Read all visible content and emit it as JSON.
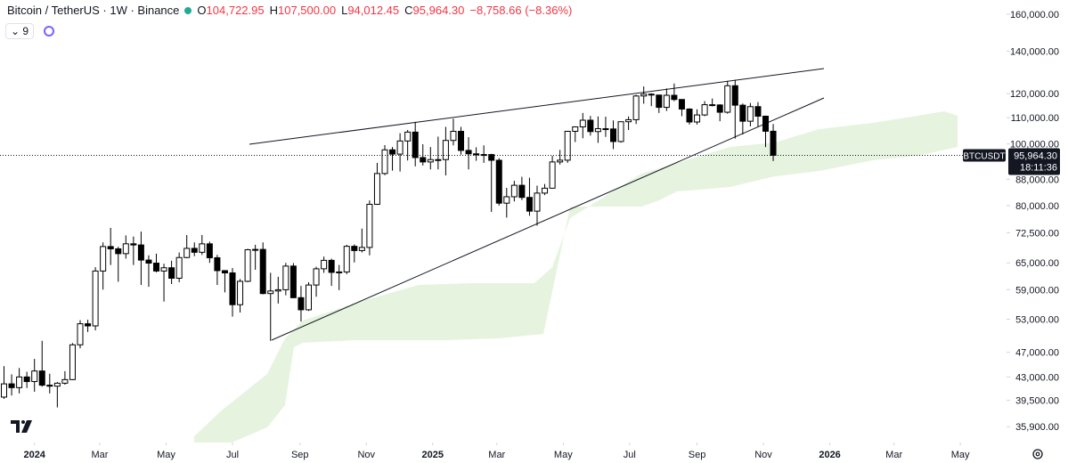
{
  "header": {
    "symbol": "Bitcoin / TetherUS · 1W · Binance",
    "ohlc": [
      {
        "key": "O",
        "value": "104,722.95"
      },
      {
        "key": "H",
        "value": "107,500.00"
      },
      {
        "key": "L",
        "value": "94,012.45"
      },
      {
        "key": "C",
        "value": "95,964.30"
      }
    ],
    "change": "−8,758.66 (−8.36%)",
    "indicators_count": "9"
  },
  "chart_data": {
    "type": "candlestick",
    "log_scale": true,
    "grid": false,
    "up_color": "#ffffff",
    "down_color": "#000000",
    "wick_color": "#000000",
    "categories": [
      null,
      null,
      null,
      null,
      null,
      null,
      null,
      null,
      null,
      null,
      null,
      null,
      null,
      null,
      null,
      null,
      null,
      null,
      null,
      null,
      null,
      null,
      null,
      null,
      null,
      null,
      null,
      null,
      null,
      null,
      null,
      null,
      null,
      null,
      null,
      null,
      null,
      null,
      null,
      null,
      null,
      null,
      null,
      null,
      null,
      null,
      null,
      null,
      null,
      null,
      null,
      null,
      null,
      null,
      null,
      null,
      null,
      null,
      null,
      null,
      null,
      null,
      null,
      null,
      null,
      null,
      null,
      null,
      null,
      null,
      null,
      null,
      null,
      null,
      null,
      null,
      null,
      null,
      null,
      null,
      null,
      null,
      null,
      null,
      null,
      null,
      null,
      null,
      null,
      null,
      null,
      null,
      null,
      null,
      null,
      null,
      null,
      null,
      null,
      null,
      null,
      null
    ],
    "open": [
      39970,
      41930,
      41360,
      42990,
      42280,
      43930,
      41730,
      41580,
      42030,
      42580,
      48300,
      52130,
      51730,
      63110,
      68960,
      68390,
      67210,
      69650,
      69360,
      65660,
      64940,
      63110,
      63860,
      61480,
      66270,
      68510,
      67540,
      69640,
      66220,
      63200,
      62680,
      55860,
      60800,
      68170,
      68250,
      58160,
      58700,
      58970,
      64250,
      57300,
      54840,
      59990,
      63620,
      65600,
      62800,
      62900,
      69020,
      67970,
      68740,
      80370,
      89850,
      97900,
      96400,
      101100,
      104400,
      95200,
      93700,
      94500,
      94500,
      101300,
      104700,
      97700,
      96500,
      96100,
      96250,
      94270,
      80700,
      82600,
      86100,
      82400,
      78400,
      83700,
      85200,
      93700,
      94300,
      104700,
      106400,
      109000,
      104600,
      105700,
      105600,
      100900,
      108400,
      109200,
      119000,
      119800,
      119400,
      114200,
      119300,
      117500,
      113500,
      108300,
      111100,
      115300,
      115200,
      112200,
      123500,
      115100,
      108600,
      114500,
      110600,
      104722.95
    ],
    "high": [
      44700,
      43400,
      44400,
      43800,
      45900,
      49000,
      43500,
      42200,
      43900,
      48600,
      52800,
      52900,
      64000,
      70000,
      73800,
      68900,
      71800,
      71500,
      72800,
      66800,
      67200,
      64800,
      65500,
      67500,
      71900,
      70000,
      71900,
      70200,
      66900,
      63300,
      63800,
      61300,
      68400,
      69400,
      70000,
      62700,
      61800,
      65000,
      64950,
      59800,
      60600,
      64100,
      66500,
      66000,
      64500,
      69400,
      69500,
      73600,
      81500,
      93400,
      99600,
      98900,
      104000,
      105200,
      108350,
      99900,
      98900,
      102700,
      106400,
      109600,
      106400,
      102500,
      98800,
      99500,
      96500,
      95000,
      85300,
      87500,
      88800,
      88500,
      86000,
      86500,
      95800,
      97900,
      104900,
      106600,
      111900,
      110700,
      110500,
      110400,
      108900,
      108500,
      110500,
      119500,
      123200,
      120200,
      119500,
      122300,
      124500,
      117600,
      113800,
      113400,
      116800,
      117900,
      115500,
      125700,
      126200,
      115800,
      116000,
      116400,
      110800,
      107500
    ],
    "low": [
      39700,
      40200,
      40500,
      41300,
      40750,
      41500,
      40500,
      38500,
      41800,
      42500,
      47700,
      50600,
      50900,
      59000,
      64500,
      60700,
      66000,
      64500,
      60000,
      59600,
      62800,
      56500,
      60200,
      60600,
      66100,
      66600,
      66900,
      65000,
      60000,
      58400,
      53500,
      54300,
      60600,
      63400,
      58000,
      49000,
      56100,
      57800,
      57200,
      52550,
      54600,
      57500,
      62700,
      59800,
      58900,
      62400,
      65100,
      67500,
      66800,
      80200,
      89300,
      90800,
      90500,
      94200,
      92200,
      92500,
      91200,
      91200,
      89250,
      99500,
      96200,
      91200,
      94100,
      93400,
      78200,
      80000,
      76600,
      81200,
      81600,
      77100,
      74400,
      83100,
      85100,
      92800,
      93400,
      100700,
      102100,
      103100,
      100400,
      102600,
      98200,
      100500,
      105200,
      107500,
      115700,
      114700,
      111900,
      112700,
      116800,
      110600,
      107300,
      107300,
      110600,
      114600,
      108600,
      111600,
      102000,
      103500,
      106600,
      106300,
      98900,
      94012.45
    ],
    "close": [
      41930,
      41360,
      42990,
      42280,
      43930,
      41730,
      41580,
      42030,
      42580,
      48300,
      52130,
      51730,
      63110,
      68960,
      68390,
      67210,
      69650,
      69360,
      65660,
      64940,
      63110,
      63860,
      61480,
      66270,
      68510,
      67540,
      69640,
      66220,
      63200,
      62680,
      55860,
      60800,
      68170,
      68250,
      58160,
      58700,
      58970,
      64250,
      57300,
      54840,
      59990,
      63620,
      65600,
      62800,
      62900,
      69020,
      67970,
      68740,
      80370,
      89850,
      97900,
      96400,
      101100,
      104400,
      95200,
      93700,
      94500,
      94500,
      101300,
      104700,
      97700,
      96500,
      96100,
      96250,
      94270,
      80700,
      82600,
      86100,
      82400,
      78400,
      83700,
      85200,
      93700,
      94300,
      104700,
      106400,
      109000,
      104600,
      105700,
      105600,
      100900,
      108400,
      109200,
      119000,
      119800,
      119400,
      114200,
      119300,
      117500,
      113500,
      108300,
      111100,
      115300,
      115200,
      112200,
      123500,
      115100,
      108600,
      114500,
      110600,
      104722.95,
      95964.3
    ],
    "ylim": [
      33900,
      168500
    ],
    "yticks": [
      {
        "value": 160000,
        "label": "160,000.00"
      },
      {
        "value": 140000,
        "label": "140,000.00"
      },
      {
        "value": 120000,
        "label": "120,000.00"
      },
      {
        "value": 110000,
        "label": "110,000.00"
      },
      {
        "value": 100000,
        "label": "100,000.00"
      },
      {
        "value": 88000,
        "label": "88,000.00"
      },
      {
        "value": 80000,
        "label": "80,000.00"
      },
      {
        "value": 72500,
        "label": "72,500.00"
      },
      {
        "value": 65000,
        "label": "65,000.00"
      },
      {
        "value": 59000,
        "label": "59,000.00"
      },
      {
        "value": 53000,
        "label": "53,000.00"
      },
      {
        "value": 47000,
        "label": "47,000.00"
      },
      {
        "value": 43000,
        "label": "43,000.00"
      },
      {
        "value": 39500,
        "label": "39,500.00"
      },
      {
        "value": 35900,
        "label": "35,900.00"
      }
    ],
    "xticks": [
      {
        "value": 4,
        "label": "2024"
      },
      {
        "value": 12.57,
        "label": "Mar"
      },
      {
        "value": 21.29,
        "label": "May"
      },
      {
        "value": 30,
        "label": "Jul"
      },
      {
        "value": 38.86,
        "label": "Sep"
      },
      {
        "value": 47.57,
        "label": "Nov"
      },
      {
        "value": 56.29,
        "label": "2025"
      },
      {
        "value": 64.71,
        "label": "Mar"
      },
      {
        "value": 73.43,
        "label": "May"
      },
      {
        "value": 82.14,
        "label": "Jul"
      },
      {
        "value": 91,
        "label": "Sep"
      },
      {
        "value": 99.71,
        "label": "Nov"
      },
      {
        "value": 108.43,
        "label": "2026"
      },
      {
        "value": 116.86,
        "label": "Mar"
      },
      {
        "value": 125.57,
        "label": "May"
      }
    ],
    "last_price": {
      "value": 95964.3,
      "label": "95,964.30"
    },
    "symbol_label": "BTCUSDT",
    "countdown": "18:11:36"
  }
}
